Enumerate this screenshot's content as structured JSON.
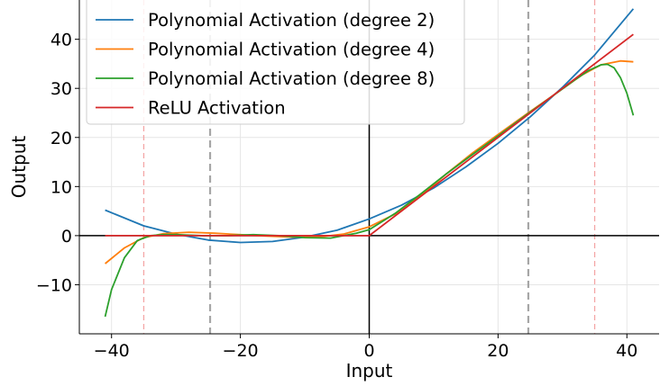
{
  "chart_data": {
    "type": "line",
    "title": "",
    "xlabel": "Input",
    "ylabel": "Output",
    "xlim": [
      -45,
      45
    ],
    "ylim": [
      -20,
      48
    ],
    "x_ticks": [
      -40,
      -20,
      0,
      20,
      40
    ],
    "y_ticks": [
      -10,
      0,
      10,
      20,
      30,
      40
    ],
    "x_tick_labels": [
      "−40",
      "−20",
      "0",
      "20",
      "40"
    ],
    "y_tick_labels": [
      "−10",
      "0",
      "10",
      "20",
      "30",
      "40"
    ],
    "grid": true,
    "legend_position": "top-left",
    "zero_lines": {
      "x": 0,
      "y": 0,
      "color": "#000000"
    },
    "reference_lines": [
      {
        "x": -24.7,
        "color": "#a6a6a6",
        "style": "dashed"
      },
      {
        "x": 24.7,
        "color": "#a6a6a6",
        "style": "dashed"
      },
      {
        "x": -35,
        "color": "#f4a6a6",
        "style": "dashed"
      },
      {
        "x": 35,
        "color": "#f4a6a6",
        "style": "dashed"
      }
    ],
    "series": [
      {
        "name": "Polynomial Activation (degree 2)",
        "color": "#1f77b4",
        "x": [
          -41,
          -35,
          -30,
          -25,
          -20,
          -15,
          -10,
          -5,
          0,
          5,
          10,
          15,
          20,
          25,
          30,
          35,
          41
        ],
        "y": [
          5.2,
          2.0,
          0.3,
          -0.9,
          -1.4,
          -1.2,
          -0.3,
          1.1,
          3.4,
          6.2,
          9.7,
          14.0,
          18.8,
          24.2,
          30.2,
          36.8,
          46.2
        ]
      },
      {
        "name": "Polynomial Activation (degree 4)",
        "color": "#ff7f0e",
        "x": [
          -41,
          -38,
          -35,
          -32,
          -28,
          -24,
          -20,
          -16,
          -12,
          -8,
          -4,
          0,
          4,
          8,
          12,
          16,
          20,
          25,
          30,
          33,
          36,
          39,
          41
        ],
        "y": [
          -5.7,
          -2.5,
          -0.4,
          0.4,
          0.7,
          0.5,
          0.2,
          -0.1,
          -0.3,
          -0.3,
          0.3,
          1.8,
          4.4,
          8.1,
          12.6,
          16.8,
          20.6,
          25.3,
          29.9,
          32.7,
          34.8,
          35.6,
          35.4
        ]
      },
      {
        "name": "Polynomial Activation (degree 8)",
        "color": "#2ca02c",
        "x": [
          -41,
          -40,
          -38,
          -36,
          -34,
          -32,
          -30,
          -26,
          -22,
          -18,
          -14,
          -10,
          -6,
          -2,
          0,
          4,
          8,
          12,
          16,
          20,
          24,
          28,
          32,
          34,
          36,
          37,
          38,
          39,
          40,
          41
        ],
        "y": [
          -16.5,
          -11.0,
          -4.5,
          -1.0,
          0.0,
          0.2,
          0.2,
          0.0,
          0.0,
          0.2,
          0.0,
          -0.4,
          -0.5,
          0.5,
          1.2,
          4.5,
          8.5,
          12.6,
          16.5,
          20.3,
          24.2,
          28.0,
          31.8,
          33.6,
          34.8,
          34.9,
          34.2,
          32.2,
          29.0,
          24.5
        ]
      },
      {
        "name": "ReLU Activation",
        "color": "#d62728",
        "x": [
          -41,
          0,
          41
        ],
        "y": [
          0,
          0,
          41
        ]
      }
    ]
  }
}
